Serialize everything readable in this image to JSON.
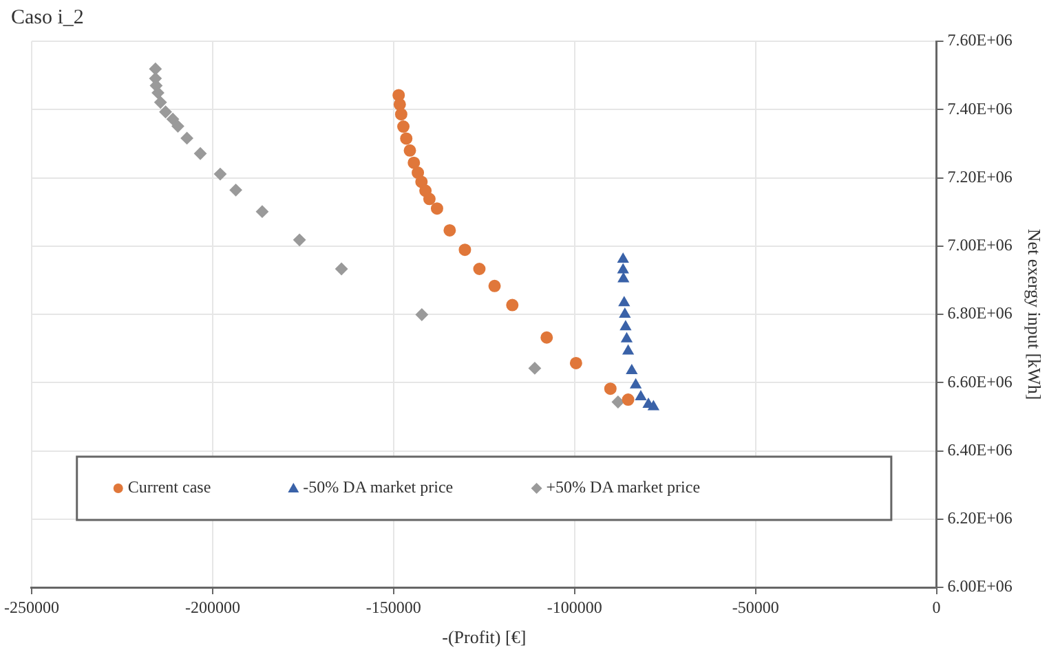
{
  "chart_data": {
    "type": "scatter",
    "title": "Caso i_2",
    "xlabel": "-(Profit) [€]",
    "ylabel": "Net exergy input [kWh]",
    "xlim": [
      -250000,
      0
    ],
    "xticks": [
      -250000,
      -200000,
      -150000,
      -100000,
      -50000,
      0
    ],
    "ylim": [
      6000000,
      7600000
    ],
    "yticks": [
      {
        "value": 6000000,
        "label": "6.00E+06"
      },
      {
        "value": 6200000,
        "label": "6.20E+06"
      },
      {
        "value": 6400000,
        "label": "6.40E+06"
      },
      {
        "value": 6600000,
        "label": "6.60E+06"
      },
      {
        "value": 6800000,
        "label": "6.80E+06"
      },
      {
        "value": 7000000,
        "label": "7.00E+06"
      },
      {
        "value": 7200000,
        "label": "7.20E+06"
      },
      {
        "value": 7400000,
        "label": "7.40E+06"
      },
      {
        "value": 7600000,
        "label": "7.60E+06"
      }
    ],
    "grid": true,
    "legend": "bottom",
    "series": [
      {
        "name": "Current case",
        "color": "#e0773a",
        "marker": "circle",
        "x": [
          -148600,
          -148300,
          -147900,
          -147300,
          -146500,
          -145500,
          -144400,
          -143300,
          -142300,
          -141200,
          -140100,
          -138000,
          -134500,
          -130300,
          -126300,
          -122100,
          -117200,
          -107700,
          -99600,
          -90100,
          -85200
        ],
        "values": [
          7442000,
          7415000,
          7386000,
          7350000,
          7315000,
          7280000,
          7244000,
          7215000,
          7188000,
          7162000,
          7138000,
          7110000,
          7046000,
          6989000,
          6933000,
          6883000,
          6827000,
          6732000,
          6657000,
          6582000,
          6550000
        ]
      },
      {
        "name": "-50% DA market price",
        "color": "#3a62a8",
        "marker": "triangle",
        "x": [
          -86600,
          -86600,
          -86500,
          -86300,
          -86100,
          -85900,
          -85600,
          -85200,
          -84200,
          -83100,
          -81700,
          -79600,
          -78200
        ],
        "values": [
          6961000,
          6930000,
          6904000,
          6834000,
          6800000,
          6763000,
          6728000,
          6692000,
          6635000,
          6593000,
          6558000,
          6536000,
          6529000
        ]
      },
      {
        "name": "+50% DA market price",
        "color": "#9a9a9a",
        "marker": "diamond",
        "x": [
          -215800,
          -215800,
          -215600,
          -215100,
          -214400,
          -213000,
          -211000,
          -209600,
          -207100,
          -203400,
          -197900,
          -193600,
          -186300,
          -176000,
          -164400,
          -142200,
          -111000,
          -88000
        ],
        "values": [
          7519000,
          7491000,
          7470000,
          7449000,
          7421000,
          7393000,
          7372000,
          7351000,
          7316000,
          7271000,
          7211000,
          7164000,
          7101000,
          7018000,
          6933000,
          6799000,
          6642000,
          6543000
        ]
      }
    ]
  }
}
